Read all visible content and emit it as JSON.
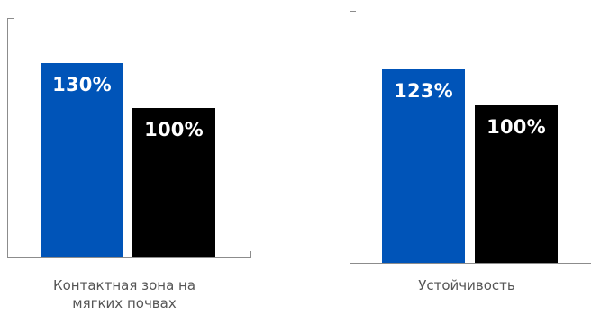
{
  "colors": {
    "accent": "#0054b8",
    "baseline": "#000000",
    "axis": "#8c8c8c"
  },
  "chart_data": [
    {
      "type": "bar",
      "categories": [
        "Контактная зона на мягких почвах"
      ],
      "series": [
        {
          "values": [
            130
          ],
          "color": "#0054b8"
        },
        {
          "values": [
            100
          ],
          "color": "#000000"
        }
      ],
      "data_labels": [
        "130%",
        "100%"
      ],
      "category_label": "Контактная зона на\nмягких почвах",
      "ylim": [
        0,
        160
      ],
      "grid": false,
      "legend": "none"
    },
    {
      "type": "bar",
      "categories": [
        "Устойчивость"
      ],
      "series": [
        {
          "values": [
            123
          ],
          "color": "#0054b8"
        },
        {
          "values": [
            100
          ],
          "color": "#000000"
        }
      ],
      "data_labels": [
        "123%",
        "100%"
      ],
      "category_label": "Устойчивость",
      "ylim": [
        0,
        160
      ],
      "grid": false,
      "legend": "none"
    }
  ]
}
